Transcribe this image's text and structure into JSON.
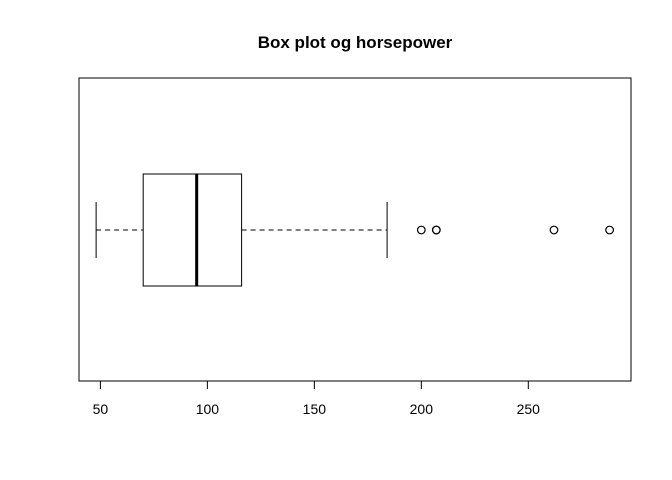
{
  "chart_data": {
    "type": "boxplot",
    "orientation": "horizontal",
    "title": "Box plot og horsepower",
    "xlabel": "",
    "ylabel": "",
    "xlim": [
      40,
      298
    ],
    "ticks": [
      50,
      100,
      150,
      200,
      250
    ],
    "tick_labels": [
      "50",
      "100",
      "150",
      "200",
      "250"
    ],
    "whisker_low": 48,
    "q1": 70,
    "median": 95,
    "q3": 116,
    "whisker_high": 184,
    "outliers": [
      200,
      207,
      207,
      262,
      288
    ],
    "grid": false,
    "colors": {
      "stroke": "#000000",
      "background": "#ffffff"
    }
  }
}
